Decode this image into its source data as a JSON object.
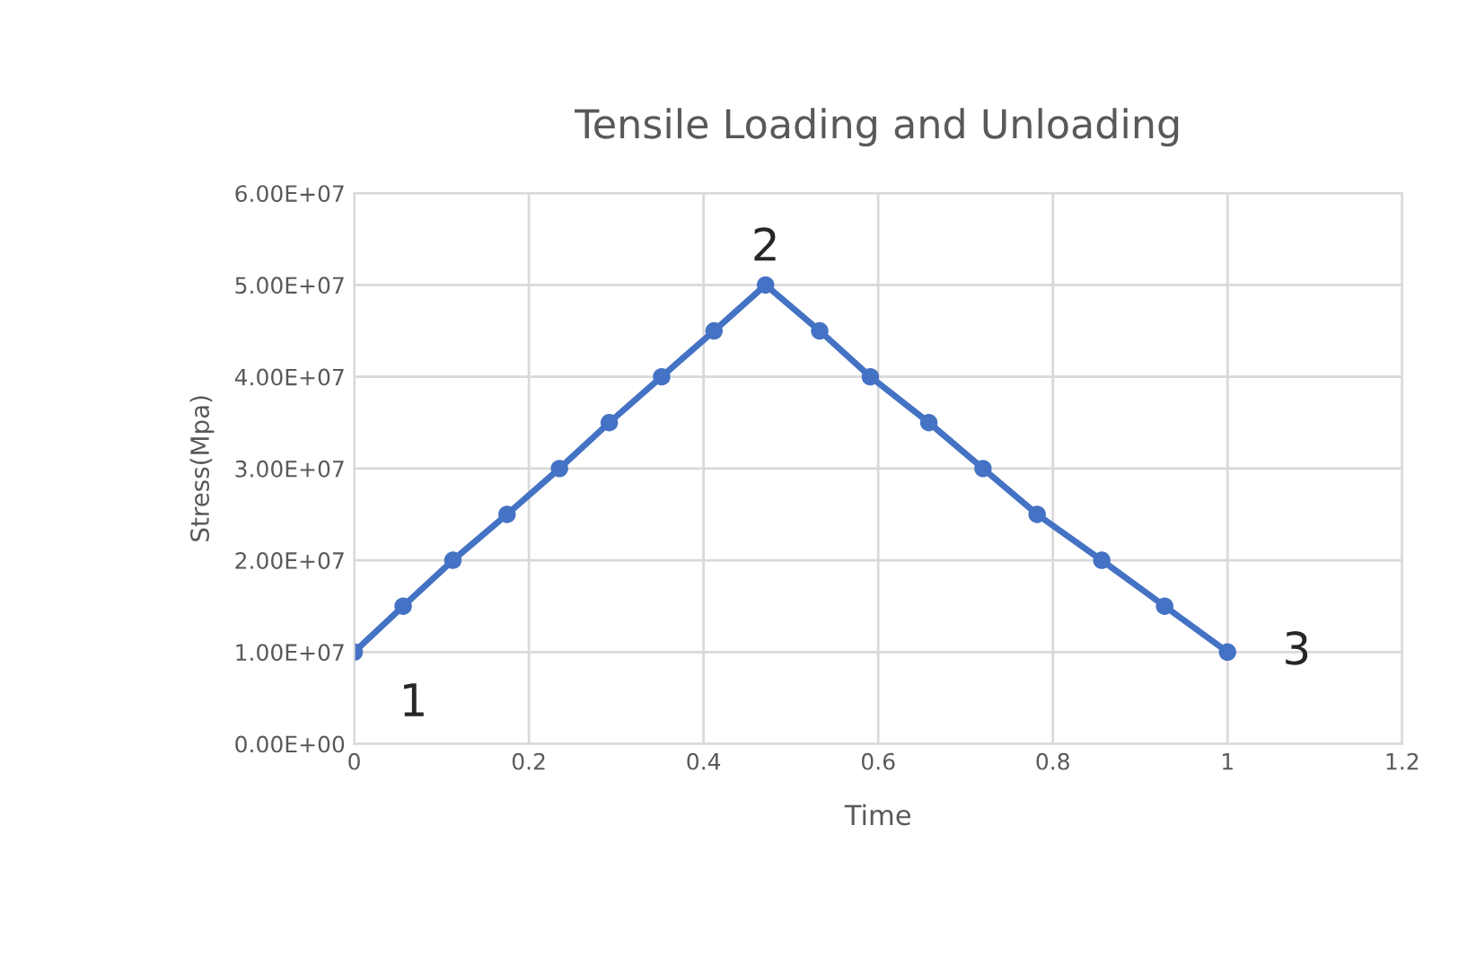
{
  "chart_data": {
    "type": "line",
    "title": "Tensile Loading and Unloading",
    "xlabel": "Time",
    "ylabel": "Stress(Mpa)",
    "x": [
      0,
      0.056,
      0.113,
      0.175,
      0.235,
      0.292,
      0.352,
      0.412,
      0.471,
      0.533,
      0.591,
      0.658,
      0.72,
      0.782,
      0.856,
      0.928,
      1.0
    ],
    "series": [
      {
        "color": "#4472c4",
        "values": [
          10000000,
          15000000,
          20000000,
          25000000,
          30000000,
          35000000,
          40000000,
          45000000,
          50000000,
          45000000,
          40000000,
          35000000,
          30000000,
          25000000,
          20000000,
          15000000,
          10000000
        ]
      }
    ],
    "xlim": [
      0,
      1.2
    ],
    "xticks": [
      0,
      0.2,
      0.4,
      0.6,
      0.8,
      1,
      1.2
    ],
    "ylim": [
      0,
      60000000
    ],
    "yticks": [
      {
        "value": 0,
        "label": "0.00E+00"
      },
      {
        "value": 10000000,
        "label": "1.00E+07"
      },
      {
        "value": 20000000,
        "label": "2.00E+07"
      },
      {
        "value": 30000000,
        "label": "3.00E+07"
      },
      {
        "value": 40000000,
        "label": "4.00E+07"
      },
      {
        "value": 50000000,
        "label": "5.00E+07"
      },
      {
        "value": 60000000,
        "label": "6.00E+07"
      }
    ],
    "annotations": [
      {
        "text": "1",
        "x": 0,
        "y": 10000000
      },
      {
        "text": "2",
        "x": 0.471,
        "y": 50000000
      },
      {
        "text": "3",
        "x": 1.0,
        "y": 10000000
      }
    ],
    "grid": true,
    "marker": "circle",
    "line_style": "solid"
  }
}
